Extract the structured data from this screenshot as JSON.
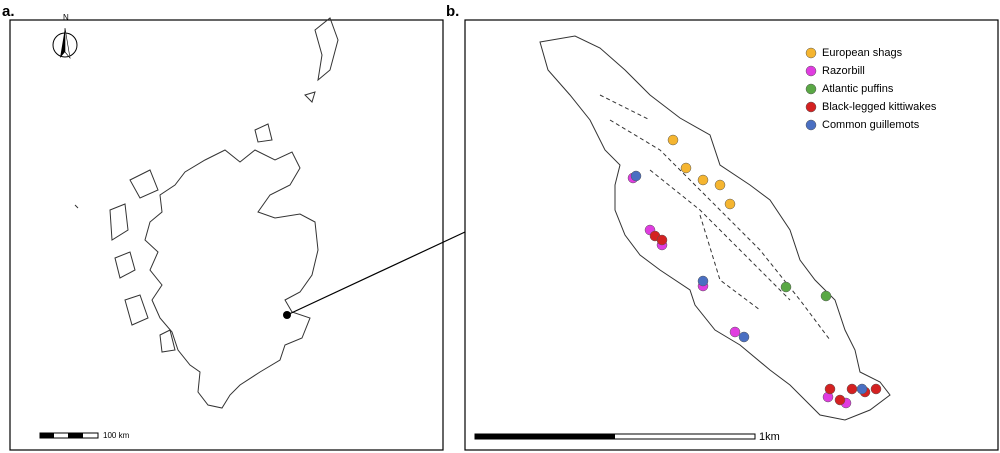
{
  "panels": [
    {
      "label": "a.",
      "north": "N",
      "scale_label": "100 km"
    },
    {
      "label": "b.",
      "scale_label": "1km"
    }
  ],
  "legend": [
    {
      "name": "European shags",
      "color": "#f5b530"
    },
    {
      "name": "Razorbill",
      "color": "#e03ce0"
    },
    {
      "name": "Atlantic puffins",
      "color": "#5aa845"
    },
    {
      "name": "Black-legged kittiwakes",
      "color": "#d42121"
    },
    {
      "name": "Common guillemots",
      "color": "#4a6fc2"
    }
  ]
}
